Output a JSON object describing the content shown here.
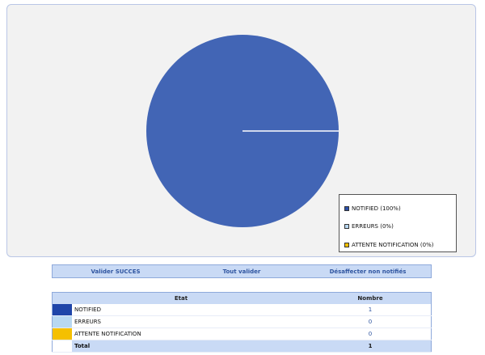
{
  "chart_data": {
    "type": "pie",
    "labels": [
      "NOTIFIED",
      "ERREURS",
      "ATTENTE NOTIFICATION"
    ],
    "values": [
      100,
      0,
      0
    ],
    "legend": [
      "NOTIFIED (100%)",
      "ERREURS (0%)",
      "ATTENTE NOTIFICATION (0%)"
    ],
    "colors": [
      "#2c4fa8",
      "#b8d8f2",
      "#f5c000"
    ],
    "pie_fill": "#4265b5",
    "legend_position": "bottom-right"
  },
  "actions": {
    "validate_success": "Valider SUCCES",
    "validate_all": "Tout valider",
    "unassign": "Désaffecter non notifiés"
  },
  "table": {
    "headers": {
      "state": "Etat",
      "count": "Nombre"
    },
    "rows": [
      {
        "label": "NOTIFIED",
        "count": "1",
        "color": "#1f45a9"
      },
      {
        "label": "ERREURS",
        "count": "0",
        "color": "#b8d8f2"
      },
      {
        "label": "ATTENTE NOTIFICATION",
        "count": "0",
        "color": "#f5c000"
      }
    ],
    "total_label": "Total",
    "total_count": "1"
  }
}
